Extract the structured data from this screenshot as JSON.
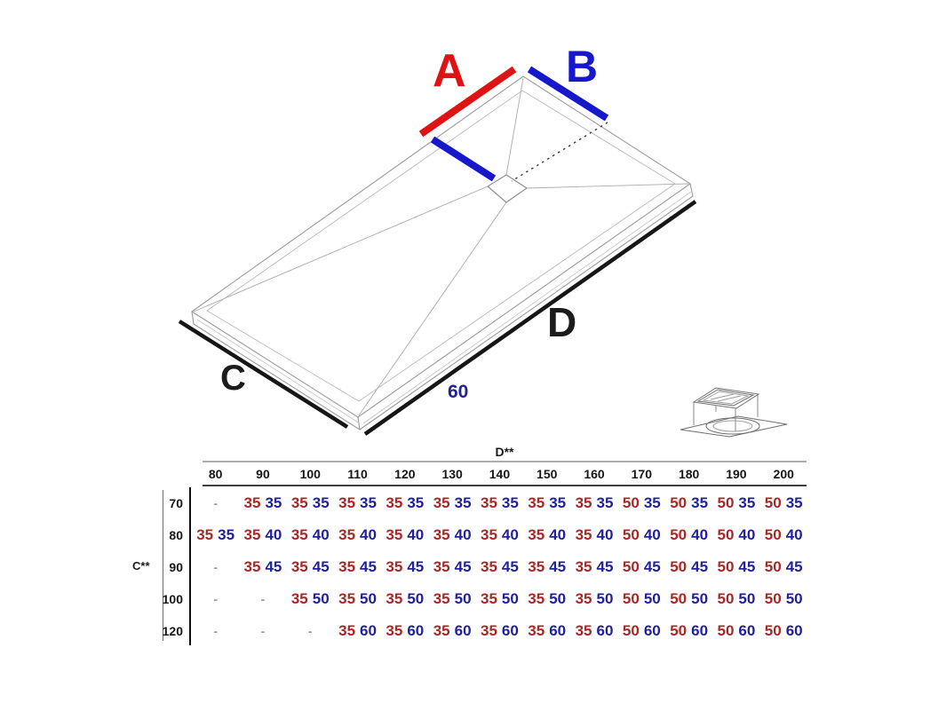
{
  "colors": {
    "dim_red": "#df1313",
    "dim_blue": "#1717cb",
    "table_red": "#a82727",
    "table_blue": "#21219b",
    "label_black": "#1c1c1c",
    "sketch_gray": "#9b9b9b"
  },
  "diagram": {
    "label_a": "A",
    "label_b": "B",
    "label_c": "C",
    "label_d": "D",
    "drain_offset_value": "60"
  },
  "table": {
    "col_axis_label": "D**",
    "row_axis_label": "C**",
    "empty_cell": "-",
    "columns": [
      "80",
      "90",
      "100",
      "110",
      "120",
      "130",
      "140",
      "150",
      "160",
      "170",
      "180",
      "190",
      "200"
    ],
    "rows": [
      {
        "label": "70",
        "cells": [
          null,
          [
            "35",
            "35"
          ],
          [
            "35",
            "35"
          ],
          [
            "35",
            "35"
          ],
          [
            "35",
            "35"
          ],
          [
            "35",
            "35"
          ],
          [
            "35",
            "35"
          ],
          [
            "35",
            "35"
          ],
          [
            "35",
            "35"
          ],
          [
            "50",
            "35"
          ],
          [
            "50",
            "35"
          ],
          [
            "50",
            "35"
          ],
          [
            "50",
            "35"
          ]
        ]
      },
      {
        "label": "80",
        "cells": [
          [
            "35",
            "35"
          ],
          [
            "35",
            "40"
          ],
          [
            "35",
            "40"
          ],
          [
            "35",
            "40"
          ],
          [
            "35",
            "40"
          ],
          [
            "35",
            "40"
          ],
          [
            "35",
            "40"
          ],
          [
            "35",
            "40"
          ],
          [
            "35",
            "40"
          ],
          [
            "50",
            "40"
          ],
          [
            "50",
            "40"
          ],
          [
            "50",
            "40"
          ],
          [
            "50",
            "40"
          ]
        ]
      },
      {
        "label": "90",
        "cells": [
          null,
          [
            "35",
            "45"
          ],
          [
            "35",
            "45"
          ],
          [
            "35",
            "45"
          ],
          [
            "35",
            "45"
          ],
          [
            "35",
            "45"
          ],
          [
            "35",
            "45"
          ],
          [
            "35",
            "45"
          ],
          [
            "35",
            "45"
          ],
          [
            "50",
            "45"
          ],
          [
            "50",
            "45"
          ],
          [
            "50",
            "45"
          ],
          [
            "50",
            "45"
          ]
        ]
      },
      {
        "label": "100",
        "cells": [
          null,
          null,
          [
            "35",
            "50"
          ],
          [
            "35",
            "50"
          ],
          [
            "35",
            "50"
          ],
          [
            "35",
            "50"
          ],
          [
            "35",
            "50"
          ],
          [
            "35",
            "50"
          ],
          [
            "35",
            "50"
          ],
          [
            "50",
            "50"
          ],
          [
            "50",
            "50"
          ],
          [
            "50",
            "50"
          ],
          [
            "50",
            "50"
          ]
        ]
      },
      {
        "label": "120",
        "cells": [
          null,
          null,
          null,
          [
            "35",
            "60"
          ],
          [
            "35",
            "60"
          ],
          [
            "35",
            "60"
          ],
          [
            "35",
            "60"
          ],
          [
            "35",
            "60"
          ],
          [
            "35",
            "60"
          ],
          [
            "50",
            "60"
          ],
          [
            "50",
            "60"
          ],
          [
            "50",
            "60"
          ],
          [
            "50",
            "60"
          ]
        ]
      }
    ]
  }
}
